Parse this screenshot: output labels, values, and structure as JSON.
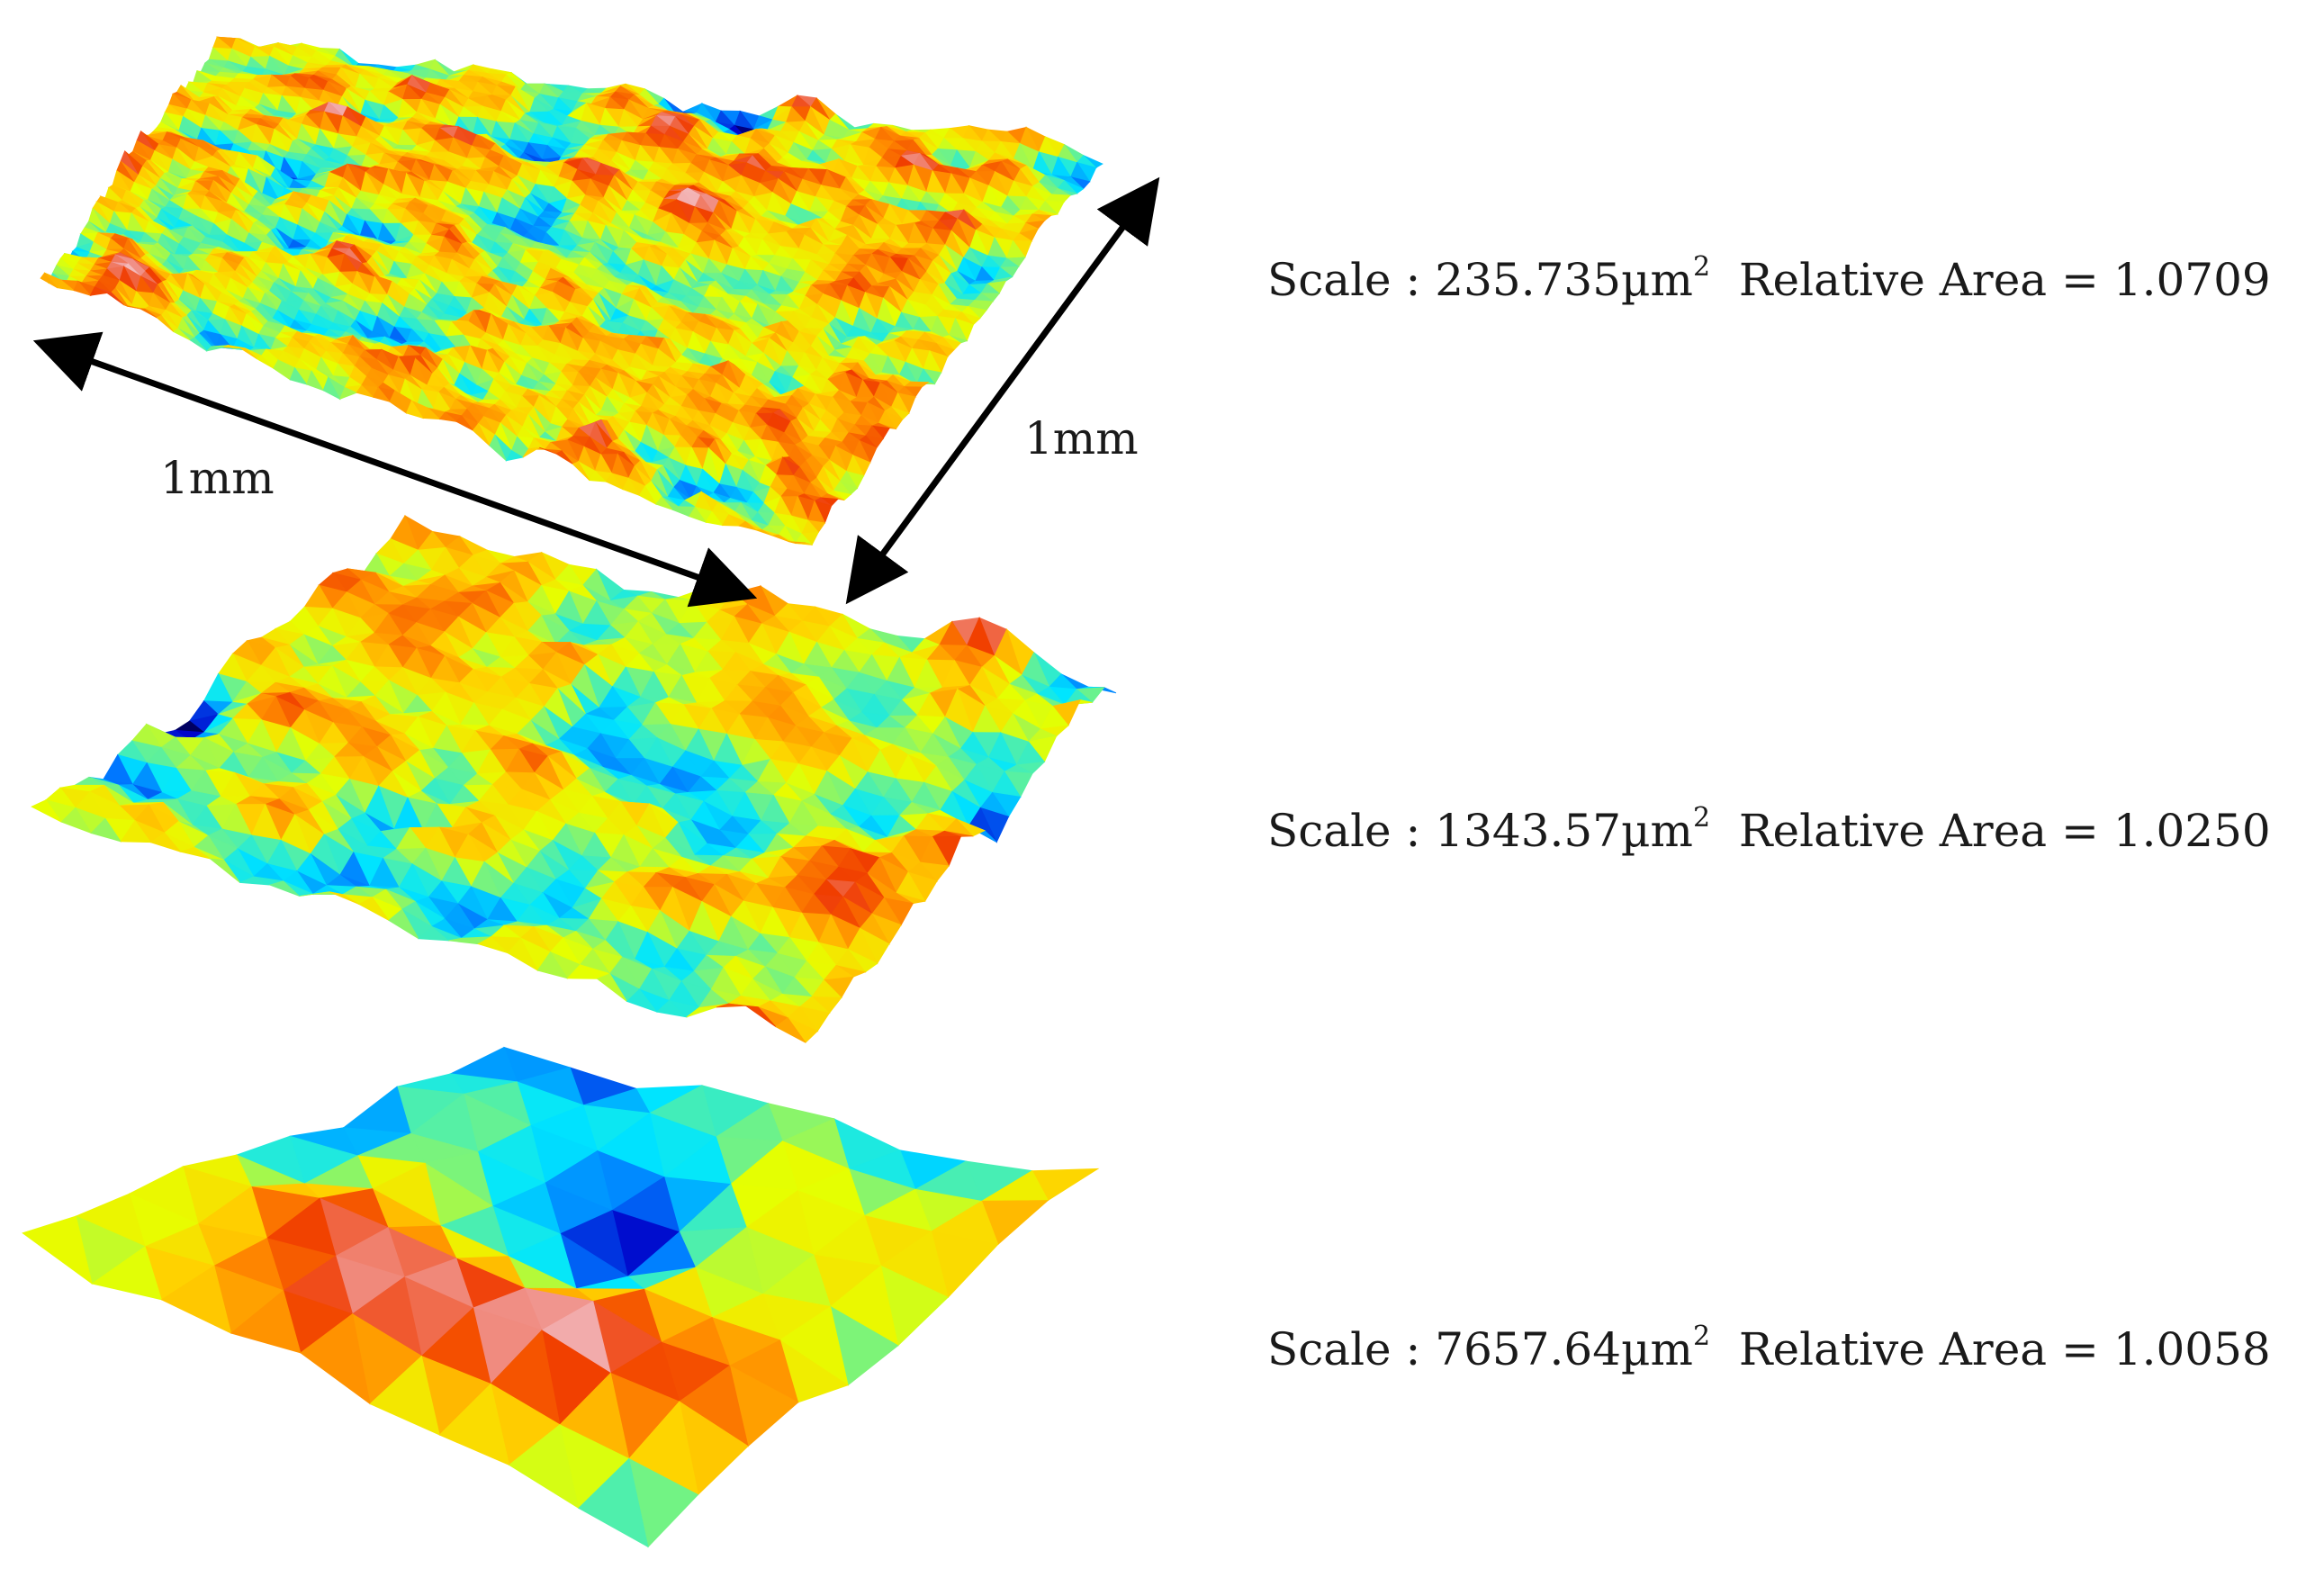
{
  "colors": {
    "colormap": [
      "#000000",
      "#0000c8",
      "#0078ff",
      "#00e6ff",
      "#5af0a0",
      "#e6ff00",
      "#ffd200",
      "#ff8c00",
      "#f03c00",
      "#f0a0a0",
      "#ffffff"
    ],
    "arrows": "#000000"
  },
  "dimensions": {
    "left_label": "1mm",
    "right_label": "1mm"
  },
  "surfaces": [
    {
      "scale_label": "Scale : 235.735µm",
      "exponent": "2",
      "relative_area_label": "Relative Area = 1.0709"
    },
    {
      "scale_label": "Scale : 1343.57µm",
      "exponent": "2",
      "relative_area_label": "Relative Area = 1.0250"
    },
    {
      "scale_label": "Scale : 7657.64µm",
      "exponent": "2",
      "relative_area_label": "Relative Area = 1.0058"
    }
  ]
}
